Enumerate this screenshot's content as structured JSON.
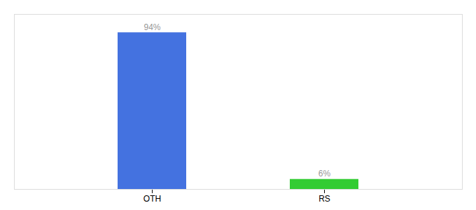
{
  "chart_data": {
    "type": "bar",
    "categories": [
      "OTH",
      "RS"
    ],
    "values": [
      94,
      6
    ],
    "value_labels": [
      "94%",
      "6%"
    ],
    "colors": [
      "#4472e0",
      "#33cc33"
    ],
    "ylim": [
      0,
      105
    ],
    "grid": false,
    "data_labels": true,
    "tick_labels": "x"
  }
}
